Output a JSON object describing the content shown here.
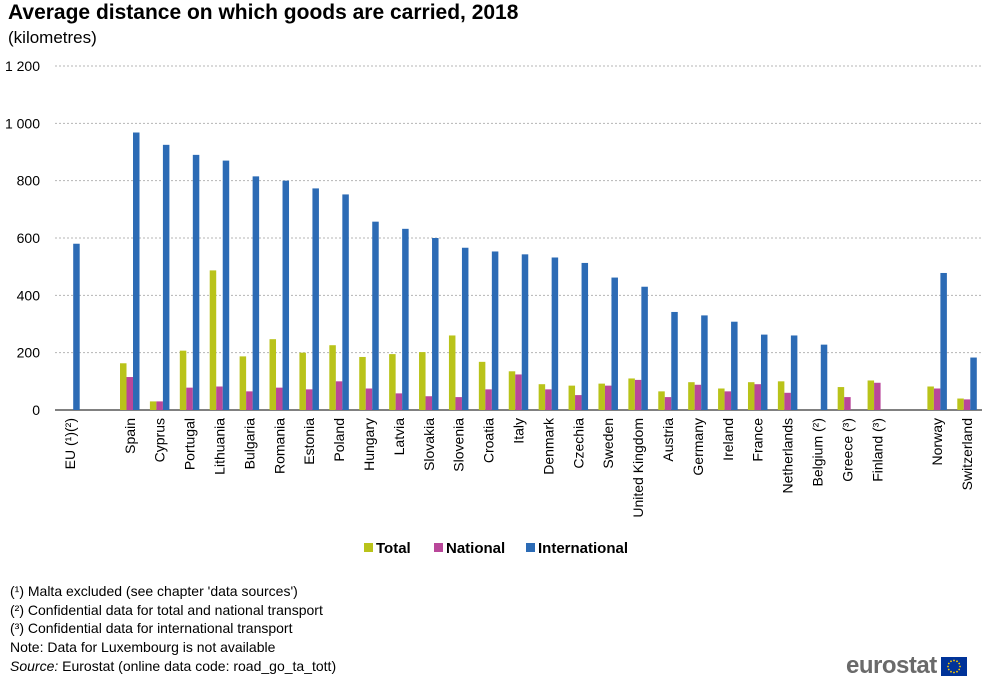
{
  "title": "Average distance on which goods are carried, 2018",
  "subtitle": "(kilometres)",
  "chart_data": {
    "type": "bar",
    "ylim": [
      0,
      1200
    ],
    "yticks": [
      0,
      200,
      400,
      600,
      800,
      1000,
      1200
    ],
    "ytick_labels": [
      "0",
      "200",
      "400",
      "600",
      "800",
      "1 000",
      "1 200"
    ],
    "grid": true,
    "legend_position": "bottom",
    "categories": [
      "EU (¹)(²)",
      "",
      "Spain",
      "Cyprus",
      "Portugal",
      "Lithuania",
      "Bulgaria",
      "Romania",
      "Estonia",
      "Poland",
      "Hungary",
      "Latvia",
      "Slovakia",
      "Slovenia",
      "Croatia",
      "Italy",
      "Denmark",
      "Czechia",
      "Sweden",
      "United Kingdom",
      "Austria",
      "Germany",
      "Ireland",
      "France",
      "Netherlands",
      "Belgium (²)",
      "Greece (³)",
      "Finland (³)",
      "",
      "Norway",
      "Switzerland"
    ],
    "series": [
      {
        "name": "Total",
        "color": "#b9c31a",
        "values": [
          null,
          null,
          163,
          30,
          207,
          487,
          187,
          247,
          200,
          226,
          185,
          195,
          202,
          260,
          168,
          135,
          90,
          85,
          92,
          110,
          65,
          97,
          75,
          97,
          100,
          null,
          80,
          103,
          null,
          82,
          40
        ]
      },
      {
        "name": "National",
        "color": "#b9479a",
        "values": [
          null,
          null,
          115,
          30,
          78,
          82,
          65,
          78,
          72,
          100,
          75,
          58,
          48,
          45,
          72,
          124,
          72,
          52,
          85,
          105,
          45,
          88,
          65,
          90,
          60,
          null,
          45,
          95,
          null,
          75,
          37
        ]
      },
      {
        "name": "International",
        "color": "#2c6bb5",
        "values": [
          580,
          null,
          968,
          925,
          890,
          870,
          815,
          800,
          773,
          752,
          657,
          632,
          600,
          566,
          553,
          543,
          532,
          513,
          462,
          430,
          342,
          330,
          308,
          263,
          260,
          228,
          null,
          null,
          null,
          478,
          183
        ]
      }
    ]
  },
  "footnotes": [
    "(¹) Malta excluded (see chapter 'data sources')",
    "(²) Confidential data for total and national transport",
    "(³) Confidential data for international transport",
    "Note: Data for Luxembourg is not available"
  ],
  "source": {
    "label": "Source:",
    "text": " Eurostat (online data code: road_go_ta_tott)"
  },
  "logo": {
    "text": "eurostat",
    "flag_color": "#003399",
    "star_color": "#ffcc00"
  }
}
